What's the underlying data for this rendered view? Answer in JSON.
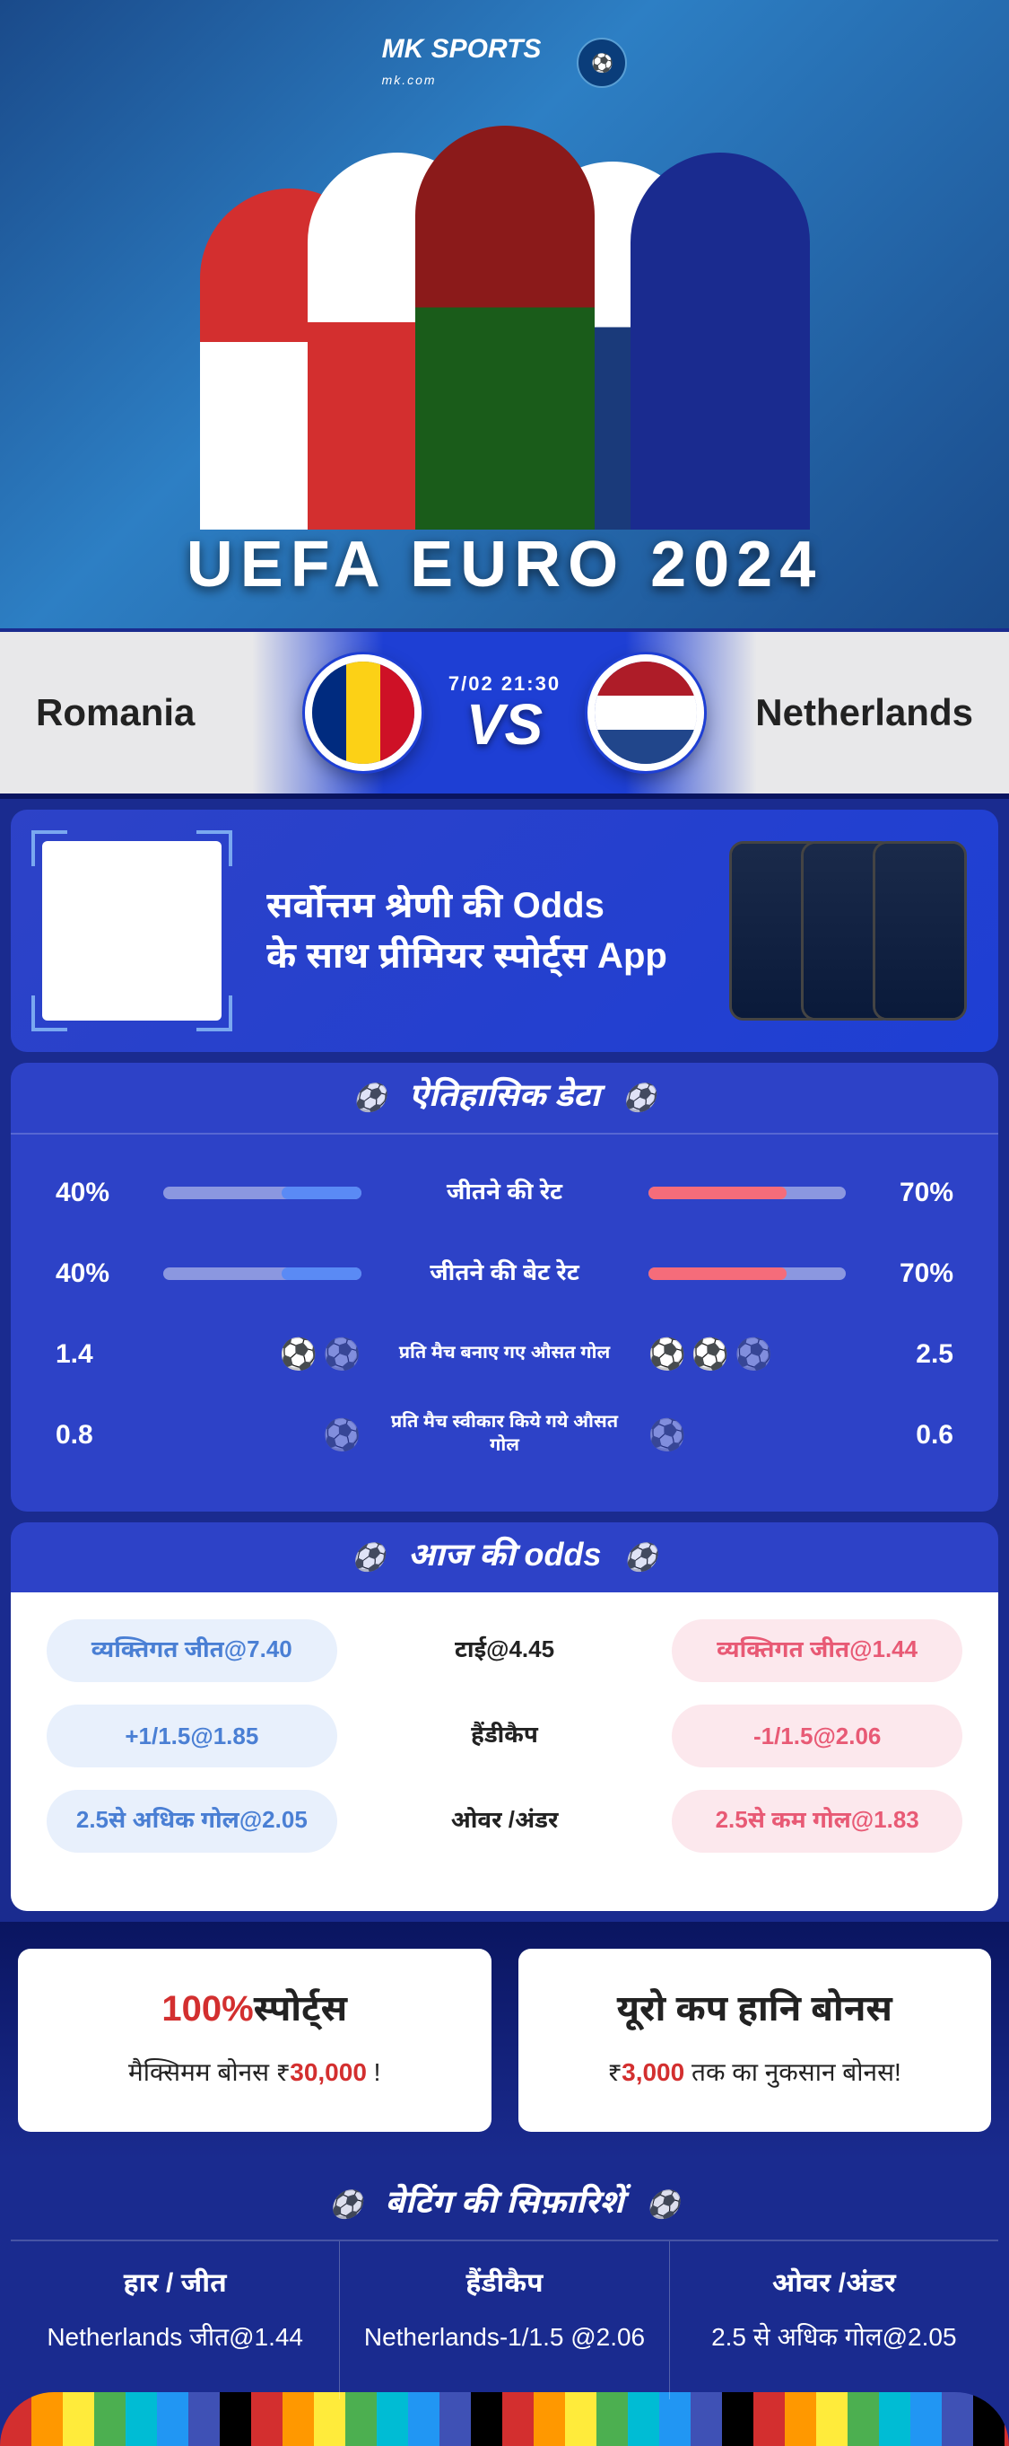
{
  "brand": {
    "name": "MK",
    "tag": "SPORTS",
    "sub": "mk.com"
  },
  "hero": {
    "title": "UEFA EURO 2024"
  },
  "matchup": {
    "homeTeam": "Romania",
    "awayTeam": "Netherlands",
    "time": "7/02 21:30",
    "vs": "VS"
  },
  "promo": {
    "line1": "सर्वोत्तम श्रेणी की Odds",
    "line2": "के साथ प्रीमियर स्पोर्ट्स App"
  },
  "historical": {
    "title": "ऐतिहासिक डेटा",
    "rows": [
      {
        "homeVal": "40%",
        "awayVal": "70%",
        "label": "जीतने की रेट",
        "homePct": 40,
        "awayPct": 70,
        "type": "bar"
      },
      {
        "homeVal": "40%",
        "awayVal": "70%",
        "label": "जीतने की बेट रेट",
        "homePct": 40,
        "awayPct": 70,
        "type": "bar"
      },
      {
        "homeVal": "1.4",
        "awayVal": "2.5",
        "label": "प्रति मैच बनाए गए औसत गोल",
        "type": "goals",
        "labelSmall": true
      },
      {
        "homeVal": "0.8",
        "awayVal": "0.6",
        "label": "प्रति मैच स्वीकार किये गये औसत गोल",
        "type": "goals",
        "labelSmall": true
      }
    ]
  },
  "odds": {
    "title": "आज की odds",
    "rows": [
      {
        "home": "व्यक्तिगत जीत@7.40",
        "center": "टाई@4.45",
        "away": "व्यक्तिगत जीत@1.44"
      },
      {
        "home": "+1/1.5@1.85",
        "center": "हैंडीकैप",
        "away": "-1/1.5@2.06"
      },
      {
        "home": "2.5से अधिक गोल@2.05",
        "center": "ओवर /अंडर",
        "away": "2.5से कम गोल@1.83"
      }
    ]
  },
  "bonuses": {
    "card1": {
      "titlePrefix": "100%",
      "titleRest": "स्पोर्ट्स",
      "subPrefix": "मैक्सिमम बोनस  ₹",
      "subValue": "30,000",
      "subSuffix": " !"
    },
    "card2": {
      "title": "यूरो कप हानि बोनस",
      "subPrefix": "₹",
      "subValue": "3,000",
      "subSuffix": " तक का नुकसान बोनस!"
    }
  },
  "recs": {
    "title": "बेटिंग की सिफ़ारिशें",
    "cols": [
      {
        "title": "हार / जीत",
        "value": "Netherlands जीत@1.44"
      },
      {
        "title": "हैंडीकैप",
        "value": "Netherlands-1/1.5 @2.06"
      },
      {
        "title": "ओवर /अंडर",
        "value": "2.5 से अधिक गोल@2.05"
      }
    ]
  },
  "colors": {
    "homeBar": "#5a8af5",
    "awayBar": "#f56c7a",
    "homePill": "#e8f0fc",
    "awayPill": "#fce8ed",
    "accent": "#d32f2f"
  }
}
